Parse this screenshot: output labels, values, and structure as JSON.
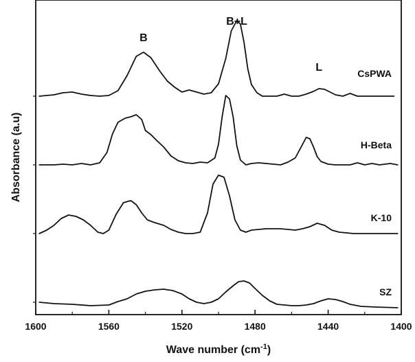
{
  "chart_data": {
    "type": "line",
    "xlabel": "Wave number (cm",
    "xlabel_sup": "-1",
    "xlabel_end": ")",
    "ylabel": "Absorbance (a.u)",
    "xlim": [
      1600,
      1400
    ],
    "x_reversed": true,
    "x_ticks": [
      1600,
      1560,
      1520,
      1480,
      1440,
      1400
    ],
    "y_ticks_labeled": false,
    "grid": false,
    "stacked_offsets": true,
    "annotations": [
      {
        "text": "B",
        "x": 1541
      },
      {
        "text": "B+L",
        "x": 1490
      },
      {
        "text": "L",
        "x": 1445
      }
    ],
    "series": [
      {
        "name": "CsPWA",
        "offset": 3.0,
        "x": [
          1598,
          1590,
          1585,
          1580,
          1575,
          1570,
          1565,
          1560,
          1555,
          1550,
          1545,
          1541,
          1537,
          1532,
          1528,
          1524,
          1520,
          1516,
          1512,
          1508,
          1504,
          1500,
          1496,
          1493,
          1490,
          1488,
          1486,
          1484,
          1482,
          1479,
          1476,
          1472,
          1468,
          1464,
          1460,
          1456,
          1452,
          1448,
          1445,
          1442,
          1439,
          1436,
          1432,
          1428,
          1424,
          1420,
          1414,
          1408,
          1404
        ],
        "values": [
          0.0,
          0.02,
          0.05,
          0.06,
          0.03,
          0.01,
          0.0,
          0.01,
          0.08,
          0.3,
          0.58,
          0.64,
          0.56,
          0.36,
          0.22,
          0.13,
          0.06,
          0.09,
          0.06,
          0.03,
          0.05,
          0.18,
          0.55,
          0.95,
          1.1,
          1.05,
          0.78,
          0.4,
          0.17,
          0.05,
          0.0,
          0.0,
          0.0,
          0.03,
          0.0,
          0.0,
          0.03,
          0.07,
          0.11,
          0.1,
          0.06,
          0.02,
          0.0,
          0.04,
          0.0,
          0.0,
          0.0,
          0.0,
          0.0
        ]
      },
      {
        "name": "H-Beta",
        "offset": 2.0,
        "x": [
          1598,
          1590,
          1585,
          1580,
          1575,
          1570,
          1565,
          1561,
          1558,
          1555,
          1551,
          1548,
          1545,
          1542,
          1540,
          1537,
          1534,
          1530,
          1526,
          1522,
          1518,
          1514,
          1510,
          1506,
          1502,
          1500,
          1498,
          1496,
          1494,
          1492,
          1490,
          1488,
          1485,
          1482,
          1478,
          1474,
          1470,
          1466,
          1462,
          1458,
          1454,
          1452,
          1450,
          1448,
          1446,
          1444,
          1440,
          1436,
          1432,
          1428,
          1424,
          1420,
          1416,
          1412,
          1406,
          1402
        ],
        "values": [
          0.0,
          0.0,
          0.01,
          0.0,
          0.02,
          0.0,
          0.03,
          0.18,
          0.45,
          0.62,
          0.68,
          0.7,
          0.73,
          0.66,
          0.5,
          0.44,
          0.36,
          0.26,
          0.13,
          0.06,
          0.03,
          0.02,
          0.04,
          0.03,
          0.1,
          0.3,
          0.7,
          1.01,
          0.96,
          0.7,
          0.28,
          0.07,
          0.0,
          0.02,
          0.03,
          0.02,
          0.01,
          0.0,
          0.04,
          0.1,
          0.3,
          0.4,
          0.38,
          0.26,
          0.12,
          0.05,
          0.01,
          0.0,
          0.0,
          0.0,
          0.03,
          0.0,
          0.02,
          0.0,
          0.02,
          0.0
        ]
      },
      {
        "name": "K-10",
        "offset": 1.0,
        "x": [
          1598,
          1594,
          1590,
          1586,
          1582,
          1578,
          1574,
          1570,
          1566,
          1563,
          1560,
          1556,
          1552,
          1548,
          1545,
          1542,
          1539,
          1535,
          1530,
          1526,
          1522,
          1518,
          1514,
          1510,
          1506,
          1503,
          1500,
          1497,
          1494,
          1491,
          1488,
          1485,
          1482,
          1478,
          1474,
          1470,
          1466,
          1462,
          1458,
          1454,
          1450,
          1446,
          1442,
          1438,
          1434,
          1430,
          1426,
          1422,
          1418,
          1414,
          1408,
          1402
        ],
        "values": [
          0.0,
          0.05,
          0.12,
          0.22,
          0.27,
          0.25,
          0.2,
          0.12,
          0.02,
          0.0,
          0.05,
          0.28,
          0.45,
          0.48,
          0.42,
          0.3,
          0.2,
          0.16,
          0.12,
          0.06,
          0.02,
          0.0,
          0.0,
          0.02,
          0.3,
          0.72,
          0.85,
          0.82,
          0.55,
          0.2,
          0.05,
          0.02,
          0.05,
          0.06,
          0.07,
          0.07,
          0.07,
          0.06,
          0.05,
          0.07,
          0.1,
          0.15,
          0.12,
          0.05,
          0.02,
          0.01,
          0.0,
          0.0,
          0.0,
          0.0,
          0.0,
          0.0
        ]
      },
      {
        "name": "SZ",
        "offset": 0.0,
        "x": [
          1598,
          1590,
          1580,
          1570,
          1560,
          1555,
          1550,
          1545,
          1540,
          1535,
          1530,
          1525,
          1520,
          1516,
          1512,
          1508,
          1504,
          1500,
          1496,
          1492,
          1489,
          1486,
          1483,
          1480,
          1476,
          1472,
          1468,
          1464,
          1460,
          1456,
          1452,
          1448,
          1444,
          1440,
          1436,
          1432,
          1428,
          1422,
          1414,
          1402
        ],
        "values": [
          0.0,
          -0.02,
          -0.03,
          -0.05,
          -0.04,
          0.01,
          0.05,
          0.12,
          0.16,
          0.18,
          0.19,
          0.17,
          0.12,
          0.05,
          0.0,
          -0.02,
          0.0,
          0.05,
          0.15,
          0.24,
          0.3,
          0.31,
          0.28,
          0.2,
          0.1,
          0.02,
          -0.03,
          -0.04,
          -0.05,
          -0.05,
          -0.04,
          -0.02,
          0.02,
          0.05,
          0.04,
          0.01,
          -0.03,
          -0.06,
          -0.07,
          -0.08
        ]
      }
    ]
  }
}
